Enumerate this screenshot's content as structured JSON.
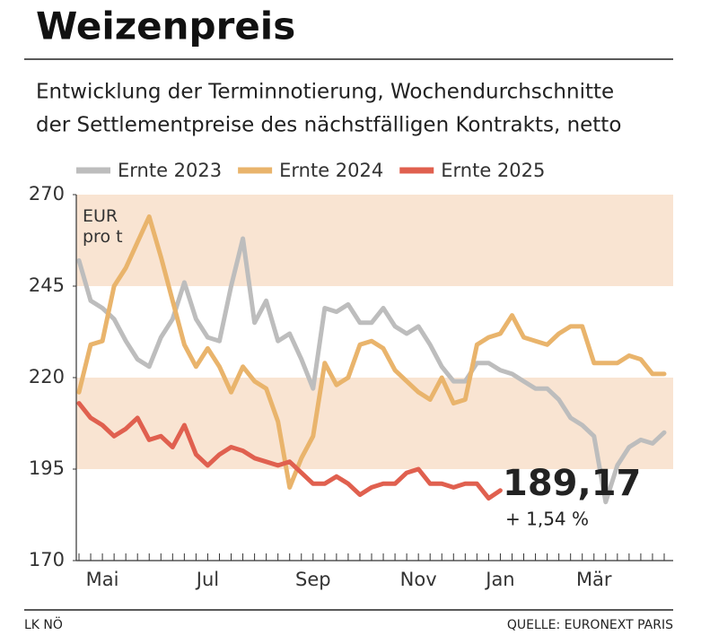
{
  "chart_data": {
    "type": "line",
    "title": "Weizenpreis",
    "subtitle": [
      "Entwicklung der Terminnotierung, Wochendurchschnitte",
      "der Settlementpreise des nächstfälligen Kontrakts, netto"
    ],
    "y_label": "EUR pro t",
    "footer_left": "LK NÖ",
    "source": "QUELLE: EURONEXT PARIS",
    "categories": [
      null,
      null,
      "Mai",
      null,
      null,
      null,
      null,
      null,
      null,
      null,
      null,
      "Jul",
      null,
      null,
      null,
      null,
      null,
      null,
      null,
      null,
      "Sep",
      null,
      null,
      null,
      null,
      null,
      null,
      null,
      null,
      "Nov",
      null,
      null,
      null,
      null,
      null,
      null,
      "Jan",
      null,
      null,
      null,
      null,
      null,
      null,
      null,
      "Mär",
      null,
      null,
      null,
      null,
      null,
      null
    ],
    "series": [
      {
        "name": "Ernte 2023",
        "color": "#bdbdbd",
        "values": [
          252,
          241,
          239,
          236,
          230,
          225,
          223,
          231,
          236,
          246,
          236,
          231,
          230,
          245,
          258,
          235,
          241,
          230,
          232,
          225,
          217,
          239,
          238,
          240,
          235,
          235,
          239,
          234,
          232,
          234,
          229,
          223,
          219,
          219,
          224,
          224,
          222,
          221,
          219,
          217,
          217,
          214,
          209,
          207,
          204,
          186,
          196,
          201,
          203,
          202,
          205
        ]
      },
      {
        "name": "Ernte 2024",
        "color": "#e9b46c",
        "values": [
          216,
          229,
          230,
          245,
          250,
          257,
          264,
          253,
          241,
          229,
          223,
          228,
          223,
          216,
          223,
          219,
          217,
          208,
          190,
          198,
          204,
          224,
          218,
          220,
          229,
          230,
          228,
          222,
          219,
          216,
          214,
          220,
          213,
          214,
          229,
          231,
          232,
          237,
          231,
          230,
          229,
          232,
          234,
          234,
          224,
          224,
          224,
          226,
          225,
          221,
          221
        ]
      },
      {
        "name": "Ernte 2025",
        "color": "#e0604f",
        "values": [
          213,
          209,
          207,
          204,
          206,
          209,
          203,
          204,
          201,
          207,
          199,
          196,
          199,
          201,
          200,
          198,
          197,
          196,
          197,
          194,
          191,
          191,
          193,
          191,
          188,
          190,
          191,
          191,
          194,
          195,
          191,
          191,
          190,
          191,
          191,
          187,
          189.17,
          null,
          null,
          null,
          null,
          null,
          null,
          null,
          null,
          null,
          null,
          null,
          null,
          null,
          null
        ]
      }
    ],
    "annotations": [
      {
        "text": "189,17",
        "color": "#e0604f"
      },
      {
        "text": "+ 1,54 %",
        "color": "#e0604f"
      }
    ],
    "ylim": [
      170,
      270
    ],
    "yticks": [
      170,
      195,
      220,
      245,
      270
    ],
    "shaded_bands": [
      [
        245,
        270
      ],
      [
        195,
        220
      ]
    ],
    "band_color": "#f9e4d2",
    "legend": "top-left"
  }
}
